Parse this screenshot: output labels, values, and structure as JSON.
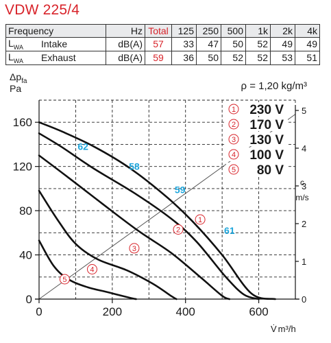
{
  "title": "VDW 225/4",
  "sound_table": {
    "header": [
      "Frequency",
      "Hz",
      "Total",
      "125",
      "250",
      "500",
      "1k",
      "2k",
      "4k"
    ],
    "rows": [
      {
        "sym": "L",
        "sub": "WA",
        "name": "Intake",
        "unit": "dB(A)",
        "total": "57",
        "values": [
          "33",
          "47",
          "50",
          "52",
          "49",
          "49"
        ]
      },
      {
        "sym": "L",
        "sub": "WA",
        "name": "Exhaust",
        "unit": "dB(A)",
        "total": "59",
        "values": [
          "36",
          "50",
          "52",
          "52",
          "53",
          "51"
        ]
      }
    ]
  },
  "density_label": "ρ = 1,20 kg/m³",
  "colors": {
    "accent_red": "#d8232a",
    "accent_blue": "#1ea6dc",
    "curve": "#111111",
    "velocity_line": "#555555"
  },
  "chart_data": {
    "type": "line",
    "x_axis": {
      "symbol": "V̇",
      "unit": "m³/h",
      "range": [
        0,
        700
      ],
      "ticks": [
        0,
        200,
        400,
        600
      ]
    },
    "y_axis": {
      "symbol": "Δp",
      "subscript": "fa",
      "unit": "Pa",
      "range": [
        0,
        180
      ],
      "ticks": [
        0,
        40,
        80,
        120,
        160
      ]
    },
    "y2_axis": {
      "symbol": "c",
      "unit": "m/s",
      "range": [
        0,
        5
      ],
      "ticks": [
        0,
        1,
        2,
        3,
        4,
        5
      ]
    },
    "grid": true,
    "legend": [
      {
        "marker": "1",
        "label": "230 V"
      },
      {
        "marker": "2",
        "label": "170 V"
      },
      {
        "marker": "3",
        "label": "130 V"
      },
      {
        "marker": "4",
        "label": "100 V"
      },
      {
        "marker": "5",
        "label": "80 V"
      }
    ],
    "series": [
      {
        "marker": "1",
        "label": "230 V",
        "points": [
          [
            0,
            160
          ],
          [
            60,
            152
          ],
          [
            150,
            138
          ],
          [
            250,
            118
          ],
          [
            350,
            92
          ],
          [
            420,
            70
          ],
          [
            500,
            40
          ],
          [
            580,
            5
          ],
          [
            645,
            0
          ]
        ],
        "marker_at": [
          440,
          72
        ]
      },
      {
        "marker": "2",
        "label": "170 V",
        "points": [
          [
            0,
            150
          ],
          [
            60,
            138
          ],
          [
            150,
            118
          ],
          [
            260,
            96
          ],
          [
            360,
            73
          ],
          [
            430,
            52
          ],
          [
            510,
            20
          ],
          [
            560,
            4
          ],
          [
            600,
            0
          ]
        ],
        "marker_at": [
          380,
          63
        ]
      },
      {
        "marker": "3",
        "label": "130 V",
        "points": [
          [
            0,
            130
          ],
          [
            80,
            110
          ],
          [
            170,
            87
          ],
          [
            270,
            62
          ],
          [
            360,
            42
          ],
          [
            440,
            20
          ],
          [
            500,
            3
          ],
          [
            520,
            0
          ]
        ],
        "marker_at": [
          260,
          46
        ]
      },
      {
        "marker": "4",
        "label": "100 V",
        "points": [
          [
            0,
            98
          ],
          [
            50,
            72
          ],
          [
            100,
            50
          ],
          [
            160,
            36
          ],
          [
            240,
            26
          ],
          [
            310,
            14
          ],
          [
            360,
            3
          ],
          [
            375,
            0
          ]
        ],
        "marker_at": [
          145,
          27
        ]
      },
      {
        "marker": "5",
        "label": "80 V",
        "points": [
          [
            0,
            53
          ],
          [
            40,
            30
          ],
          [
            80,
            18
          ],
          [
            130,
            11
          ],
          [
            190,
            6
          ],
          [
            250,
            1
          ],
          [
            265,
            0
          ]
        ],
        "marker_at": [
          70,
          18
        ]
      }
    ],
    "velocity_line": {
      "points": [
        [
          0,
          0
        ],
        [
          700,
          4.9
        ]
      ]
    },
    "sound_labels": [
      {
        "text": "62",
        "x": 120,
        "y": 135
      },
      {
        "text": "58",
        "x": 260,
        "y": 117
      },
      {
        "text": "59",
        "x": 385,
        "y": 96
      },
      {
        "text": "61",
        "x": 520,
        "y": 59
      }
    ]
  }
}
